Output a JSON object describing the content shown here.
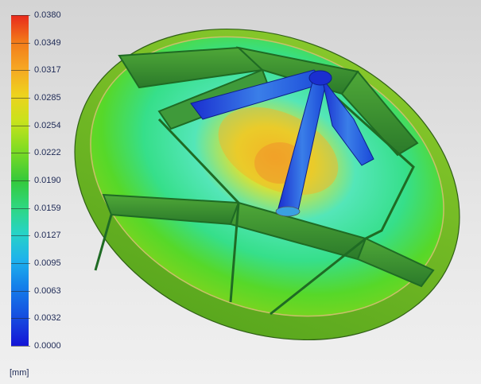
{
  "legend": {
    "unit": "[mm]",
    "ticks": [
      "0.0380",
      "0.0349",
      "0.0317",
      "0.0285",
      "0.0254",
      "0.0222",
      "0.0190",
      "0.0159",
      "0.0127",
      "0.0095",
      "0.0063",
      "0.0032",
      "0.0000"
    ],
    "range": [
      0.0,
      0.038
    ],
    "color_stops": [
      "#e8291c",
      "#f27a1a",
      "#f6a623",
      "#eed21e",
      "#c9e21c",
      "#86dd22",
      "#35c93a",
      "#2fd77f",
      "#27d3c7",
      "#1eb2ec",
      "#1580ea",
      "#164fe0",
      "#1515d6"
    ]
  },
  "model": {
    "icon": "ribbed-disc-deformation-model"
  }
}
